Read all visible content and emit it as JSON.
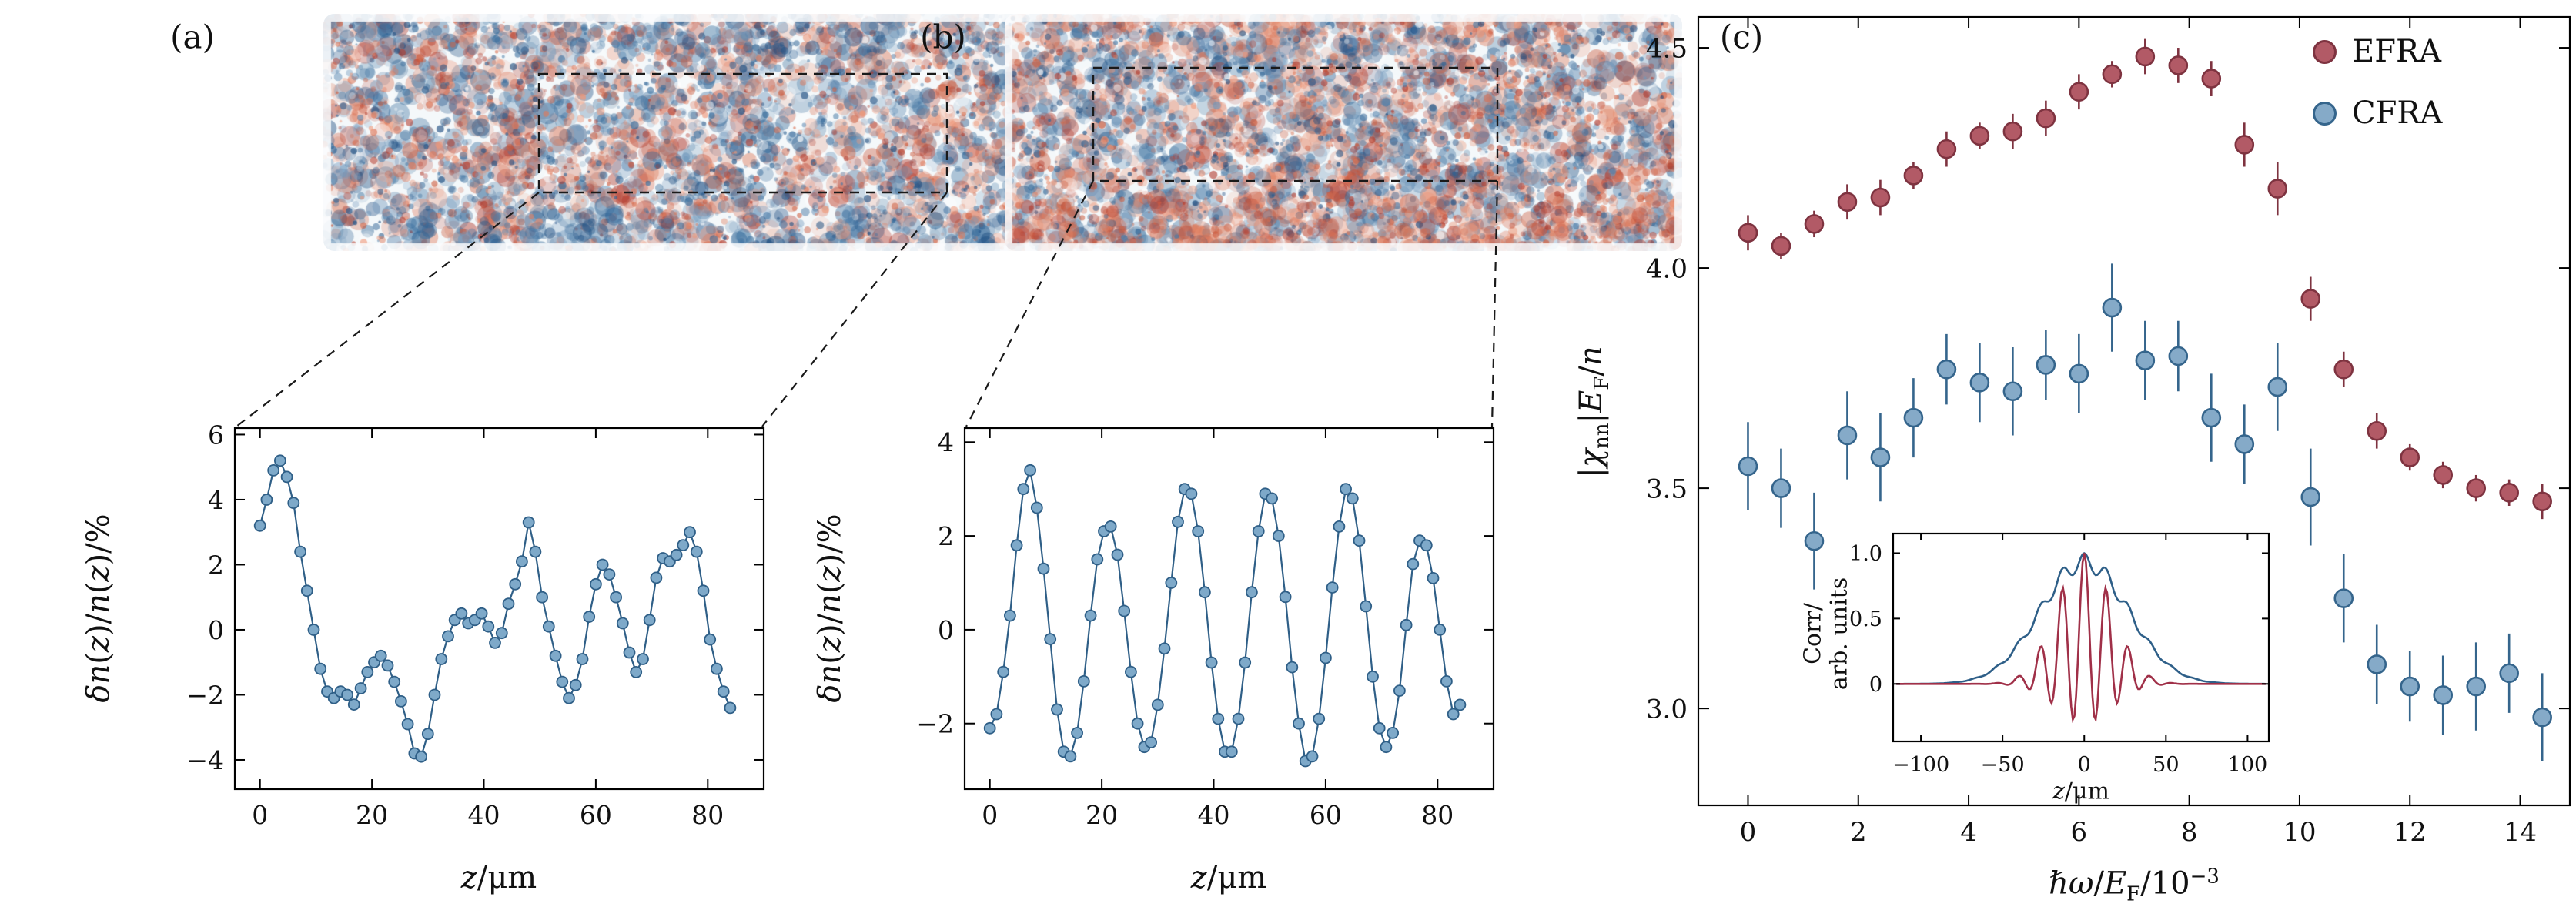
{
  "figure": {
    "panels": [
      "(a)",
      "(b)",
      "(c)"
    ]
  },
  "colors": {
    "blue_marker_fill": "#7ea9c9",
    "blue_marker_stroke": "#2f5f87",
    "red_marker_fill": "#b25a66",
    "red_marker_stroke": "#7e3340",
    "speckle_blue": "#2c6294",
    "speckle_red": "#cd5c3e",
    "axis_color": "#000000"
  },
  "chart_data": [
    {
      "id": "a",
      "type": "line-scatter",
      "panel": "(a)",
      "xlabel": "z/um",
      "ylabel": "dn(z)/n(z)/%",
      "xlabel_html": "<i>z</i>/μm",
      "ylabel_html": "<i>δn</i>(<i>z</i>)/<i>n</i>(<i>z</i>)/%",
      "xlim": [
        -4.5,
        90
      ],
      "ylim": [
        -4.9,
        6.2
      ],
      "xticks": [
        0,
        20,
        40,
        60,
        80
      ],
      "xtick_labels": [
        "0",
        "20",
        "40",
        "60",
        "80"
      ],
      "yticks": [
        -4,
        -2,
        0,
        2,
        4,
        6
      ],
      "ytick_labels": [
        "−4",
        "−2",
        "0",
        "2",
        "4",
        "6"
      ],
      "grid": false,
      "series": [
        {
          "name": "relative density modulation (a)",
          "marker_fill": "#7ea9c9",
          "marker_stroke": "#2f5f87",
          "line_color": "#2f5f87",
          "points": [
            [
              0.0,
              3.2
            ],
            [
              1.2,
              4.0
            ],
            [
              2.4,
              4.9
            ],
            [
              3.6,
              5.2
            ],
            [
              4.8,
              4.7
            ],
            [
              6.0,
              3.9
            ],
            [
              7.2,
              2.4
            ],
            [
              8.4,
              1.2
            ],
            [
              9.6,
              0.0
            ],
            [
              10.8,
              -1.2
            ],
            [
              12.0,
              -1.9
            ],
            [
              13.2,
              -2.1
            ],
            [
              14.4,
              -1.9
            ],
            [
              15.6,
              -2.0
            ],
            [
              16.8,
              -2.3
            ],
            [
              18.0,
              -1.8
            ],
            [
              19.2,
              -1.3
            ],
            [
              20.4,
              -1.0
            ],
            [
              21.6,
              -0.8
            ],
            [
              22.8,
              -1.1
            ],
            [
              24.0,
              -1.6
            ],
            [
              25.2,
              -2.2
            ],
            [
              26.4,
              -2.9
            ],
            [
              27.6,
              -3.8
            ],
            [
              28.8,
              -3.9
            ],
            [
              30.0,
              -3.2
            ],
            [
              31.2,
              -2.0
            ],
            [
              32.4,
              -0.9
            ],
            [
              33.6,
              -0.2
            ],
            [
              34.8,
              0.3
            ],
            [
              36.0,
              0.5
            ],
            [
              37.2,
              0.2
            ],
            [
              38.4,
              0.3
            ],
            [
              39.6,
              0.5
            ],
            [
              40.8,
              0.1
            ],
            [
              42.0,
              -0.4
            ],
            [
              43.2,
              -0.1
            ],
            [
              44.4,
              0.8
            ],
            [
              45.6,
              1.4
            ],
            [
              46.8,
              2.1
            ],
            [
              48.0,
              3.3
            ],
            [
              49.2,
              2.4
            ],
            [
              50.4,
              1.0
            ],
            [
              51.6,
              0.1
            ],
            [
              52.8,
              -0.8
            ],
            [
              54.0,
              -1.6
            ],
            [
              55.2,
              -2.1
            ],
            [
              56.4,
              -1.7
            ],
            [
              57.6,
              -0.9
            ],
            [
              58.8,
              0.4
            ],
            [
              60.0,
              1.4
            ],
            [
              61.2,
              2.0
            ],
            [
              62.4,
              1.7
            ],
            [
              63.6,
              1.0
            ],
            [
              64.8,
              0.2
            ],
            [
              66.0,
              -0.7
            ],
            [
              67.2,
              -1.3
            ],
            [
              68.4,
              -0.9
            ],
            [
              69.6,
              0.3
            ],
            [
              70.8,
              1.6
            ],
            [
              72.0,
              2.2
            ],
            [
              73.2,
              2.1
            ],
            [
              74.4,
              2.3
            ],
            [
              75.6,
              2.6
            ],
            [
              76.8,
              3.0
            ],
            [
              78.0,
              2.4
            ],
            [
              79.2,
              1.2
            ],
            [
              80.4,
              -0.3
            ],
            [
              81.6,
              -1.2
            ],
            [
              82.8,
              -1.9
            ],
            [
              84.0,
              -2.4
            ]
          ]
        }
      ]
    },
    {
      "id": "b",
      "type": "line-scatter",
      "panel": "(b)",
      "xlabel": "z/um",
      "ylabel": "dn(z)/n(z)/%",
      "xlabel_html": "<i>z</i>/μm",
      "ylabel_html": "<i>δn</i>(<i>z</i>)/<i>n</i>(<i>z</i>)/%",
      "xlim": [
        -4.5,
        90
      ],
      "ylim": [
        -3.4,
        4.3
      ],
      "xticks": [
        0,
        20,
        40,
        60,
        80
      ],
      "xtick_labels": [
        "0",
        "20",
        "40",
        "60",
        "80"
      ],
      "yticks": [
        -2,
        0,
        2,
        4
      ],
      "ytick_labels": [
        "−2",
        "0",
        "2",
        "4"
      ],
      "grid": false,
      "series": [
        {
          "name": "relative density modulation (b)",
          "marker_fill": "#7ea9c9",
          "marker_stroke": "#2f5f87",
          "line_color": "#2f5f87",
          "points": [
            [
              0.0,
              -2.1
            ],
            [
              1.2,
              -1.8
            ],
            [
              2.4,
              -0.9
            ],
            [
              3.6,
              0.3
            ],
            [
              4.8,
              1.8
            ],
            [
              6.0,
              3.0
            ],
            [
              7.2,
              3.4
            ],
            [
              8.4,
              2.6
            ],
            [
              9.6,
              1.3
            ],
            [
              10.8,
              -0.2
            ],
            [
              12.0,
              -1.7
            ],
            [
              13.2,
              -2.6
            ],
            [
              14.4,
              -2.7
            ],
            [
              15.6,
              -2.2
            ],
            [
              16.8,
              -1.1
            ],
            [
              18.0,
              0.3
            ],
            [
              19.2,
              1.5
            ],
            [
              20.4,
              2.1
            ],
            [
              21.6,
              2.2
            ],
            [
              22.8,
              1.6
            ],
            [
              24.0,
              0.4
            ],
            [
              25.2,
              -0.9
            ],
            [
              26.4,
              -2.0
            ],
            [
              27.6,
              -2.5
            ],
            [
              28.8,
              -2.4
            ],
            [
              30.0,
              -1.6
            ],
            [
              31.2,
              -0.4
            ],
            [
              32.4,
              1.0
            ],
            [
              33.6,
              2.3
            ],
            [
              34.8,
              3.0
            ],
            [
              36.0,
              2.9
            ],
            [
              37.2,
              2.1
            ],
            [
              38.4,
              0.8
            ],
            [
              39.6,
              -0.7
            ],
            [
              40.8,
              -1.9
            ],
            [
              42.0,
              -2.6
            ],
            [
              43.2,
              -2.6
            ],
            [
              44.4,
              -1.9
            ],
            [
              45.6,
              -0.7
            ],
            [
              46.8,
              0.8
            ],
            [
              48.0,
              2.1
            ],
            [
              49.2,
              2.9
            ],
            [
              50.4,
              2.8
            ],
            [
              51.6,
              2.0
            ],
            [
              52.8,
              0.7
            ],
            [
              54.0,
              -0.8
            ],
            [
              55.2,
              -2.0
            ],
            [
              56.4,
              -2.8
            ],
            [
              57.6,
              -2.7
            ],
            [
              58.8,
              -1.9
            ],
            [
              60.0,
              -0.6
            ],
            [
              61.2,
              0.9
            ],
            [
              62.4,
              2.2
            ],
            [
              63.6,
              3.0
            ],
            [
              64.8,
              2.8
            ],
            [
              66.0,
              1.9
            ],
            [
              67.2,
              0.5
            ],
            [
              68.4,
              -1.0
            ],
            [
              69.6,
              -2.1
            ],
            [
              70.8,
              -2.5
            ],
            [
              72.0,
              -2.2
            ],
            [
              73.2,
              -1.3
            ],
            [
              74.4,
              0.1
            ],
            [
              75.6,
              1.4
            ],
            [
              76.8,
              1.9
            ],
            [
              78.0,
              1.8
            ],
            [
              79.2,
              1.1
            ],
            [
              80.4,
              0.0
            ],
            [
              81.6,
              -1.1
            ],
            [
              82.8,
              -1.8
            ],
            [
              84.0,
              -1.6
            ]
          ]
        }
      ]
    },
    {
      "id": "c",
      "type": "scatter-errorbar",
      "panel": "(c)",
      "xlabel": "hw/EF/10^-3",
      "ylabel": "|chi_nn|EF/n",
      "xlabel_html": "<i>ℏω</i>/<i>E</i><sub>F</sub>/10<sup>−3</sup>",
      "ylabel_html": "|<i>χ</i><sub>nn</sub>|<i>E</i><sub>F</sub>/<i>n</i>",
      "xlim": [
        -0.9,
        14.9
      ],
      "ylim": [
        2.78,
        4.57
      ],
      "xticks": [
        0,
        2,
        4,
        6,
        8,
        10,
        12,
        14
      ],
      "xtick_labels": [
        "0",
        "2",
        "4",
        "6",
        "8",
        "10",
        "12",
        "14"
      ],
      "yticks": [
        3.0,
        3.5,
        4.0,
        4.5
      ],
      "ytick_labels": [
        "3.0",
        "3.5",
        "4.0",
        "4.5"
      ],
      "grid": false,
      "legend": {
        "items": [
          {
            "label": "EFRA",
            "fill": "#b25a66",
            "stroke": "#7e3340"
          },
          {
            "label": "CFRA",
            "fill": "#85aac8",
            "stroke": "#35658c"
          }
        ]
      },
      "x": [
        0.0,
        0.6,
        1.2,
        1.8,
        2.4,
        3.0,
        3.6,
        4.2,
        4.8,
        5.4,
        6.0,
        6.6,
        7.2,
        7.8,
        8.4,
        9.0,
        9.6,
        10.2,
        10.8,
        11.4,
        12.0,
        12.6,
        13.2,
        13.8,
        14.4
      ],
      "series": [
        {
          "name": "EFRA",
          "fill": "#b25a66",
          "stroke": "#7e3340",
          "y": [
            4.08,
            4.05,
            4.1,
            4.15,
            4.16,
            4.21,
            4.27,
            4.3,
            4.31,
            4.34,
            4.4,
            4.44,
            4.48,
            4.46,
            4.43,
            4.28,
            4.18,
            3.93,
            3.77,
            3.63,
            3.57,
            3.53,
            3.5,
            3.49,
            3.47
          ],
          "yerr": [
            0.04,
            0.03,
            0.03,
            0.04,
            0.04,
            0.03,
            0.04,
            0.03,
            0.04,
            0.04,
            0.04,
            0.03,
            0.04,
            0.04,
            0.04,
            0.05,
            0.06,
            0.05,
            0.04,
            0.04,
            0.03,
            0.03,
            0.03,
            0.03,
            0.04
          ]
        },
        {
          "name": "CFRA",
          "fill": "#85aac8",
          "stroke": "#35658c",
          "y": [
            3.55,
            3.5,
            3.38,
            3.62,
            3.57,
            3.66,
            3.77,
            3.74,
            3.72,
            3.78,
            3.76,
            3.91,
            3.79,
            3.8,
            3.66,
            3.6,
            3.73,
            3.48,
            3.25,
            3.1,
            3.05,
            3.03,
            3.05,
            3.08,
            2.98
          ],
          "yerr": [
            0.1,
            0.09,
            0.11,
            0.1,
            0.1,
            0.09,
            0.08,
            0.09,
            0.1,
            0.08,
            0.09,
            0.1,
            0.09,
            0.08,
            0.1,
            0.09,
            0.1,
            0.11,
            0.1,
            0.09,
            0.08,
            0.09,
            0.1,
            0.09,
            0.1
          ]
        }
      ]
    },
    {
      "id": "inset",
      "type": "line",
      "xlabel": "z/um",
      "ylabel": "Corr/arb. units",
      "xlabel_html": "<i>z</i>/μm",
      "ylabel_html": "Corr/<br>arb. units",
      "xlim": [
        -117,
        113
      ],
      "ylim": [
        -0.44,
        1.15
      ],
      "xticks": [
        -100,
        -50,
        0,
        50,
        100
      ],
      "xtick_labels": [
        "−100",
        "−50",
        "0",
        "50",
        "100"
      ],
      "yticks": [
        0,
        0.5,
        1.0
      ],
      "ytick_labels": [
        "0",
        "0.5",
        "1.0"
      ],
      "grid": false,
      "curves": [
        {
          "name": "correlation envelope (CFRA)",
          "color": "#2e5f88",
          "model": {
            "kind": "gauss_ripple",
            "sigma": 38,
            "period": 13.5,
            "base": 0.93,
            "ripple": 0.07
          }
        },
        {
          "name": "oscillating correlation (EFRA)",
          "color": "#a03048",
          "model": {
            "kind": "gauss_cos_offset",
            "sigma": 24,
            "period": 13.5,
            "offset": 0.35
          }
        }
      ]
    }
  ]
}
